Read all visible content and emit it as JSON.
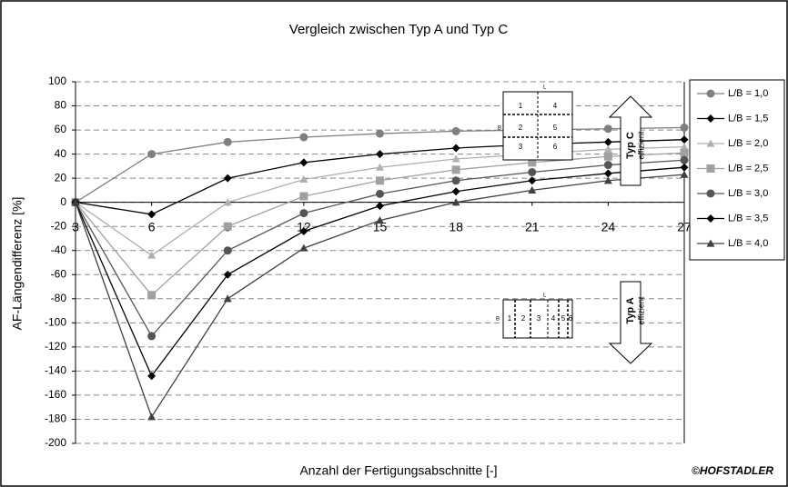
{
  "chart_data": {
    "type": "line",
    "title": "Vergleich zwischen Typ A und Typ C",
    "xlabel": "Anzahl der Fertigungsabschnitte [-]",
    "ylabel": "AF-Längendifferenz [%]",
    "credit": "©HOFSTADLER",
    "x": [
      3,
      6,
      9,
      12,
      15,
      18,
      21,
      24,
      27
    ],
    "xlim": [
      3,
      27
    ],
    "xticks": [
      3,
      6,
      9,
      12,
      15,
      18,
      21,
      24,
      27
    ],
    "ylim": [
      -200,
      100
    ],
    "yticks": [
      -200,
      -180,
      -160,
      -140,
      -120,
      -100,
      -80,
      -60,
      -40,
      -20,
      0,
      20,
      40,
      60,
      80,
      100
    ],
    "grid": true,
    "legend": "right",
    "series": [
      {
        "name": "L/B = 1,0",
        "color": "#7f7f7f",
        "marker": "circle",
        "values": [
          0,
          40,
          50,
          54,
          57,
          59,
          60,
          61,
          62
        ]
      },
      {
        "name": "L/B = 1,5",
        "color": "#000000",
        "marker": "diamond",
        "values": [
          0,
          -10,
          20,
          33,
          40,
          45,
          48,
          50,
          52
        ]
      },
      {
        "name": "L/B = 2,0",
        "color": "#b0b0b0",
        "marker": "triangle",
        "values": [
          0,
          -44,
          0,
          19,
          29,
          36,
          40,
          44,
          46
        ]
      },
      {
        "name": "L/B = 2,5",
        "color": "#a0a0a0",
        "marker": "square",
        "values": [
          0,
          -77,
          -20,
          5,
          18,
          27,
          33,
          38,
          41
        ]
      },
      {
        "name": "L/B = 3,0",
        "color": "#555555",
        "marker": "circle",
        "values": [
          0,
          -111,
          -40,
          -9,
          7,
          18,
          25,
          31,
          35
        ]
      },
      {
        "name": "L/B = 3,5",
        "color": "#000000",
        "marker": "diamond",
        "values": [
          0,
          -144,
          -60,
          -24,
          -3,
          9,
          18,
          24,
          29
        ]
      },
      {
        "name": "L/B = 4,0",
        "color": "#404040",
        "marker": "triangle",
        "values": [
          0,
          -178,
          -80,
          -38,
          -15,
          0,
          10,
          18,
          23
        ]
      }
    ],
    "insets": {
      "typ_c": {
        "label": "Typ C",
        "note": "effizient",
        "cells": [
          "1",
          "2",
          "3",
          "4",
          "5",
          "6"
        ],
        "length": "L",
        "width": "B"
      },
      "typ_a": {
        "label": "Typ A",
        "note": "effizient",
        "cells": [
          "1",
          "2",
          "3",
          "4",
          "5",
          "6"
        ],
        "length": "L",
        "width": "B"
      }
    }
  }
}
